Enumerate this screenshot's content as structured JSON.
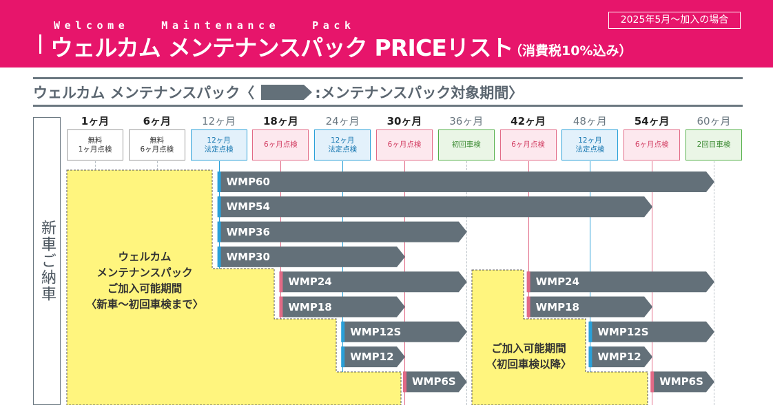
{
  "header": {
    "eng": "Welcome   Maintenance   Pack",
    "title": "ウェルカム メンテナンスパック PRICEリスト",
    "tax": "（消費税10%込み）",
    "badge": "2025年5月～加入の場合"
  },
  "subheading": {
    "prefix": "ウェルカム メンテナンスパック〈",
    "suffix": ":メンテナンスパック対象期間〉"
  },
  "side_label": "新車ご納車",
  "colors": {
    "brand": "#e7156b",
    "bar": "#637079",
    "yellow": "#fff57e",
    "blue": "#2aa0d8",
    "pink": "#e26a86",
    "green": "#55b04a"
  },
  "months": [
    {
      "label": "1ヶ月",
      "service": "無料\n1ヶ月点検",
      "kind": "gray"
    },
    {
      "label": "6ヶ月",
      "service": "無料\n6ヶ月点検",
      "kind": "gray"
    },
    {
      "label": "12ヶ月",
      "service": "12ヶ月\n法定点検",
      "kind": "blue"
    },
    {
      "label": "18ヶ月",
      "service": "6ヶ月点検",
      "kind": "pink"
    },
    {
      "label": "24ヶ月",
      "service": "12ヶ月\n法定点検",
      "kind": "blue"
    },
    {
      "label": "30ヶ月",
      "service": "6ヶ月点検",
      "kind": "pink"
    },
    {
      "label": "36ヶ月",
      "service": "初回車検",
      "kind": "green"
    },
    {
      "label": "42ヶ月",
      "service": "6ヶ月点検",
      "kind": "pink"
    },
    {
      "label": "48ヶ月",
      "service": "12ヶ月\n法定点検",
      "kind": "blue"
    },
    {
      "label": "54ヶ月",
      "service": "6ヶ月点検",
      "kind": "pink"
    },
    {
      "label": "60ヶ月",
      "service": "2回目車検",
      "kind": "green"
    }
  ],
  "bars": [
    {
      "name": "WMP60",
      "start": 12,
      "end": 60,
      "marker": "blue"
    },
    {
      "name": "WMP54",
      "start": 12,
      "end": 54,
      "marker": "blue"
    },
    {
      "name": "WMP36",
      "start": 12,
      "end": 36,
      "marker": "blue"
    },
    {
      "name": "WMP30",
      "start": 12,
      "end": 30,
      "marker": "blue"
    },
    {
      "name": "WMP24",
      "start": 18,
      "end": 36,
      "marker": "pink"
    },
    {
      "name": "WMP18",
      "start": 18,
      "end": 30,
      "marker": "pink"
    },
    {
      "name": "WMP12S",
      "start": 24,
      "end": 36,
      "marker": "blue"
    },
    {
      "name": "WMP12",
      "start": 24,
      "end": 30,
      "marker": "blue"
    },
    {
      "name": "WMP6S",
      "start": 30,
      "end": 36,
      "marker": "pink"
    },
    {
      "name": "WMP24",
      "start": 42,
      "end": 60,
      "marker": "pink"
    },
    {
      "name": "WMP18",
      "start": 42,
      "end": 54,
      "marker": "pink"
    },
    {
      "name": "WMP12S",
      "start": 48,
      "end": 60,
      "marker": "blue"
    },
    {
      "name": "WMP12",
      "start": 48,
      "end": 54,
      "marker": "blue"
    },
    {
      "name": "WMP6S",
      "start": 54,
      "end": 60,
      "marker": "pink"
    }
  ],
  "regions": {
    "new_car": "ウェルカム\nメンテナンスパック\nご加入可能期間\n〈新車～初回車検まで〉",
    "after_inspection": "ご加入可能期間\n〈初回車検以降〉"
  }
}
